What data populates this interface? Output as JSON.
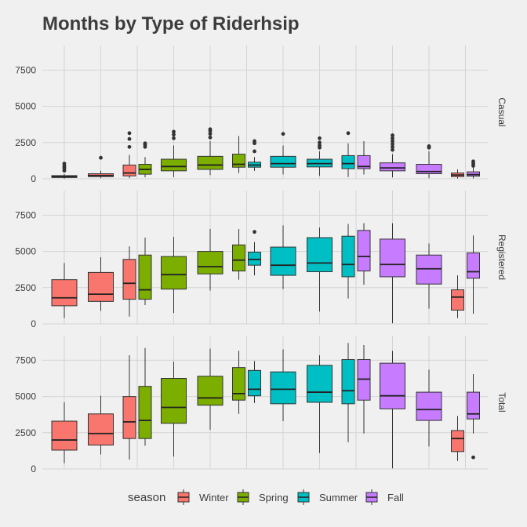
{
  "chart_data": {
    "type": "boxplot",
    "title": "Months by Type of Riderhsip",
    "xlabel": "",
    "ylabel": "",
    "panels": [
      "Casual",
      "Registered",
      "Total"
    ],
    "ylim": [
      0,
      9200
    ],
    "yticks": [
      0,
      2500,
      5000,
      7500
    ],
    "ytick_labels": [
      "0",
      "2500",
      "5000",
      "7500"
    ],
    "legend": {
      "title": "season",
      "position": "bottom",
      "entries": [
        "Winter",
        "Spring",
        "Summer",
        "Fall"
      ]
    },
    "season_colors": {
      "Winter": "#f8766d",
      "Spring": "#7cae00",
      "Summer": "#00bfc4",
      "Fall": "#c77cff"
    },
    "months": [
      {
        "month": 1,
        "boxes": [
          {
            "season": "Winter",
            "offset": 0
          }
        ]
      },
      {
        "month": 2,
        "boxes": [
          {
            "season": "Winter",
            "offset": 0
          }
        ]
      },
      {
        "month": 3,
        "boxes": [
          {
            "season": "Winter",
            "offset": -1
          },
          {
            "season": "Spring",
            "offset": 1
          }
        ]
      },
      {
        "month": 4,
        "boxes": [
          {
            "season": "Spring",
            "offset": 0
          }
        ]
      },
      {
        "month": 5,
        "boxes": [
          {
            "season": "Spring",
            "offset": 0
          }
        ]
      },
      {
        "month": 6,
        "boxes": [
          {
            "season": "Spring",
            "offset": -1
          },
          {
            "season": "Summer",
            "offset": 1
          }
        ]
      },
      {
        "month": 7,
        "boxes": [
          {
            "season": "Summer",
            "offset": 0
          }
        ]
      },
      {
        "month": 8,
        "boxes": [
          {
            "season": "Summer",
            "offset": 0
          }
        ]
      },
      {
        "month": 9,
        "boxes": [
          {
            "season": "Summer",
            "offset": -1
          },
          {
            "season": "Fall",
            "offset": 1
          }
        ]
      },
      {
        "month": 10,
        "boxes": [
          {
            "season": "Fall",
            "offset": 0
          }
        ]
      },
      {
        "month": 11,
        "boxes": [
          {
            "season": "Fall",
            "offset": 0
          }
        ]
      },
      {
        "month": 12,
        "boxes": [
          {
            "season": "Winter",
            "offset": -1
          },
          {
            "season": "Fall",
            "offset": 1
          }
        ]
      }
    ],
    "panel_data": {
      "Casual": [
        [
          {
            "lo": 9,
            "q1": 90,
            "med": 140,
            "q3": 220,
            "hi": 330,
            "out": [
              560,
              700,
              800,
              900,
              1050
            ]
          }
        ],
        [
          {
            "lo": 40,
            "q1": 150,
            "med": 230,
            "q3": 350,
            "hi": 560,
            "out": [
              1450
            ]
          }
        ],
        [
          {
            "lo": 50,
            "q1": 200,
            "med": 400,
            "q3": 950,
            "hi": 1650,
            "out": [
              2200,
              2750,
              3150
            ]
          },
          {
            "lo": 100,
            "q1": 320,
            "med": 650,
            "q3": 1000,
            "hi": 1500,
            "out": [
              2200,
              2350,
              2450
            ]
          }
        ],
        [
          {
            "lo": 120,
            "q1": 550,
            "med": 850,
            "q3": 1350,
            "hi": 2300,
            "out": [
              2800,
              3050,
              3250
            ]
          }
        ],
        [
          {
            "lo": 250,
            "q1": 650,
            "med": 950,
            "q3": 1550,
            "hi": 2600,
            "out": [
              2850,
              3100,
              3300,
              3420
            ]
          }
        ],
        [
          {
            "lo": 400,
            "q1": 800,
            "med": 1000,
            "q3": 1700,
            "hi": 2950,
            "out": []
          },
          {
            "lo": 550,
            "q1": 800,
            "med": 950,
            "q3": 1150,
            "hi": 1500,
            "out": [
              1900,
              2450,
              2600
            ]
          }
        ],
        [
          {
            "lo": 300,
            "q1": 800,
            "med": 1050,
            "q3": 1550,
            "hi": 2300,
            "out": [
              3100
            ]
          }
        ],
        [
          {
            "lo": 200,
            "q1": 820,
            "med": 1050,
            "q3": 1350,
            "hi": 1900,
            "out": [
              2150,
              2300,
              2500,
              2800
            ]
          }
        ],
        [
          {
            "lo": 120,
            "q1": 700,
            "med": 1050,
            "q3": 1600,
            "hi": 2450,
            "out": [
              3150
            ]
          },
          {
            "lo": 300,
            "q1": 700,
            "med": 850,
            "q3": 1600,
            "hi": 2600,
            "out": []
          }
        ],
        [
          {
            "lo": 100,
            "q1": 550,
            "med": 750,
            "q3": 1100,
            "hi": 1700,
            "out": [
              2000,
              2200,
              2400,
              2600,
              2800,
              3000
            ]
          }
        ],
        [
          {
            "lo": 50,
            "q1": 350,
            "med": 500,
            "q3": 1000,
            "hi": 1900,
            "out": [
              2150,
              2250
            ]
          }
        ],
        [
          {
            "lo": 20,
            "q1": 150,
            "med": 260,
            "q3": 400,
            "hi": 650,
            "out": []
          },
          {
            "lo": 30,
            "q1": 180,
            "med": 290,
            "q3": 480,
            "hi": 780,
            "out": [
              900,
              1050,
              1200
            ]
          }
        ]
      ],
      "Registered": [
        [
          {
            "lo": 400,
            "q1": 1250,
            "med": 1800,
            "q3": 3050,
            "hi": 4200,
            "out": []
          }
        ],
        [
          {
            "lo": 900,
            "q1": 1550,
            "med": 2050,
            "q3": 3550,
            "hi": 4600,
            "out": []
          }
        ],
        [
          {
            "lo": 500,
            "q1": 1700,
            "med": 2800,
            "q3": 4450,
            "hi": 5350,
            "out": []
          },
          {
            "lo": 1300,
            "q1": 1700,
            "med": 2350,
            "q3": 4750,
            "hi": 5950,
            "out": []
          }
        ],
        [
          {
            "lo": 750,
            "q1": 2400,
            "med": 3400,
            "q3": 4650,
            "hi": 6000,
            "out": []
          }
        ],
        [
          {
            "lo": 2300,
            "q1": 3450,
            "med": 3950,
            "q3": 5000,
            "hi": 6550,
            "out": []
          }
        ],
        [
          {
            "lo": 3050,
            "q1": 3650,
            "med": 4400,
            "q3": 5450,
            "hi": 6550,
            "out": []
          },
          {
            "lo": 3350,
            "q1": 4050,
            "med": 4450,
            "q3": 4950,
            "hi": 5650,
            "out": [
              6350
            ]
          }
        ],
        [
          {
            "lo": 2400,
            "q1": 3350,
            "med": 4050,
            "q3": 5300,
            "hi": 6800,
            "out": []
          }
        ],
        [
          {
            "lo": 850,
            "q1": 3600,
            "med": 4200,
            "q3": 5950,
            "hi": 6650,
            "out": []
          }
        ],
        [
          {
            "lo": 1750,
            "q1": 3250,
            "med": 4100,
            "q3": 6050,
            "hi": 6900,
            "out": []
          },
          {
            "lo": 2700,
            "q1": 3650,
            "med": 4650,
            "q3": 6450,
            "hi": 6950,
            "out": []
          }
        ],
        [
          {
            "lo": 50,
            "q1": 3250,
            "med": 4100,
            "q3": 5850,
            "hi": 6950,
            "out": []
          }
        ],
        [
          {
            "lo": 1050,
            "q1": 2750,
            "med": 3800,
            "q3": 4750,
            "hi": 5550,
            "out": []
          }
        ],
        [
          {
            "lo": 400,
            "q1": 950,
            "med": 1850,
            "q3": 2350,
            "hi": 3350,
            "out": []
          },
          {
            "lo": 700,
            "q1": 3150,
            "med": 3600,
            "q3": 4900,
            "hi": 6100,
            "out": []
          }
        ]
      ],
      "Total": [
        [
          {
            "lo": 400,
            "q1": 1300,
            "med": 2000,
            "q3": 3300,
            "hi": 4600,
            "out": []
          }
        ],
        [
          {
            "lo": 1000,
            "q1": 1650,
            "med": 2450,
            "q3": 3800,
            "hi": 5050,
            "out": []
          }
        ],
        [
          {
            "lo": 650,
            "q1": 2100,
            "med": 3250,
            "q3": 5000,
            "hi": 7850,
            "out": []
          },
          {
            "lo": 1600,
            "q1": 2100,
            "med": 3350,
            "q3": 5700,
            "hi": 8350,
            "out": []
          }
        ],
        [
          {
            "lo": 850,
            "q1": 3150,
            "med": 4250,
            "q3": 6250,
            "hi": 7400,
            "out": []
          }
        ],
        [
          {
            "lo": 2700,
            "q1": 4400,
            "med": 4900,
            "q3": 6400,
            "hi": 8300,
            "out": []
          }
        ],
        [
          {
            "lo": 3800,
            "q1": 4750,
            "med": 5200,
            "q3": 7000,
            "hi": 8150,
            "out": []
          },
          {
            "lo": 4550,
            "q1": 5050,
            "med": 5500,
            "q3": 6800,
            "hi": 7450,
            "out": []
          }
        ],
        [
          {
            "lo": 3300,
            "q1": 4500,
            "med": 5500,
            "q3": 6700,
            "hi": 8250,
            "out": []
          }
        ],
        [
          {
            "lo": 1100,
            "q1": 4600,
            "med": 5300,
            "q3": 7150,
            "hi": 7850,
            "out": []
          }
        ],
        [
          {
            "lo": 1850,
            "q1": 4500,
            "med": 5400,
            "q3": 7550,
            "hi": 8700,
            "out": []
          },
          {
            "lo": 2450,
            "q1": 4750,
            "med": 6200,
            "q3": 7550,
            "hi": 8550,
            "out": []
          }
        ],
        [
          {
            "lo": 50,
            "q1": 4150,
            "med": 5050,
            "q3": 7300,
            "hi": 8150,
            "out": []
          }
        ],
        [
          {
            "lo": 1550,
            "q1": 3350,
            "med": 4100,
            "q3": 5300,
            "hi": 6850,
            "out": []
          }
        ],
        [
          {
            "lo": 550,
            "q1": 1200,
            "med": 2100,
            "q3": 2650,
            "hi": 3650,
            "out": []
          },
          {
            "lo": 2450,
            "q1": 3450,
            "med": 3800,
            "q3": 5300,
            "hi": 6550,
            "out": [
              800
            ]
          }
        ]
      ]
    }
  }
}
